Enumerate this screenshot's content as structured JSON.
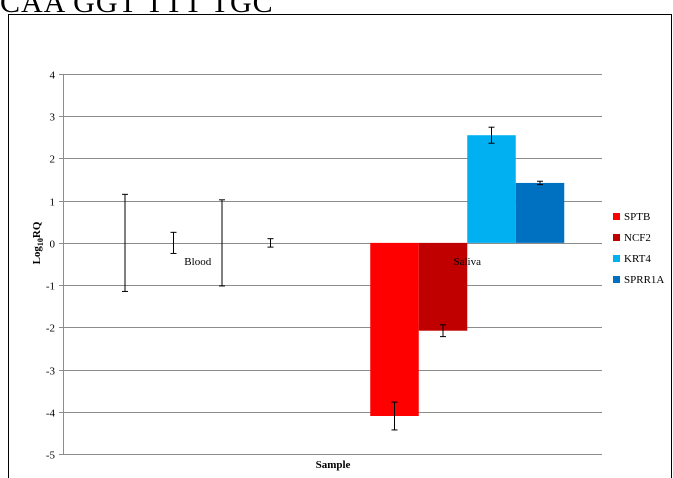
{
  "header_text": "CAA GGT TTT TGC",
  "chart_data": {
    "type": "bar",
    "categories": [
      "Blood",
      "Saliva"
    ],
    "series": [
      {
        "name": "SPTB",
        "color": "#ff0000",
        "values": [
          0,
          -4.1
        ],
        "errors": [
          1.15,
          0.33
        ]
      },
      {
        "name": "NCF2",
        "color": "#c00000",
        "values": [
          0,
          -2.08
        ],
        "errors": [
          0.25,
          0.14
        ]
      },
      {
        "name": "KRT4",
        "color": "#00b0f0",
        "values": [
          0,
          2.55
        ],
        "errors": [
          1.02,
          0.19
        ]
      },
      {
        "name": "SPRR1A",
        "color": "#0070c0",
        "values": [
          0,
          1.42
        ],
        "errors": [
          0.1,
          0.04
        ]
      }
    ],
    "title": "",
    "xlabel": "Sample",
    "ylabel_main": "Log",
    "ylabel_sub": "10",
    "ylabel_end": "RQ",
    "ylim": [
      -5,
      4
    ],
    "yticks": [
      "-5",
      "-4",
      "-3",
      "-2",
      "-1",
      "0",
      "1",
      "2",
      "3",
      "4"
    ],
    "grid": true,
    "legend_position": "right"
  }
}
